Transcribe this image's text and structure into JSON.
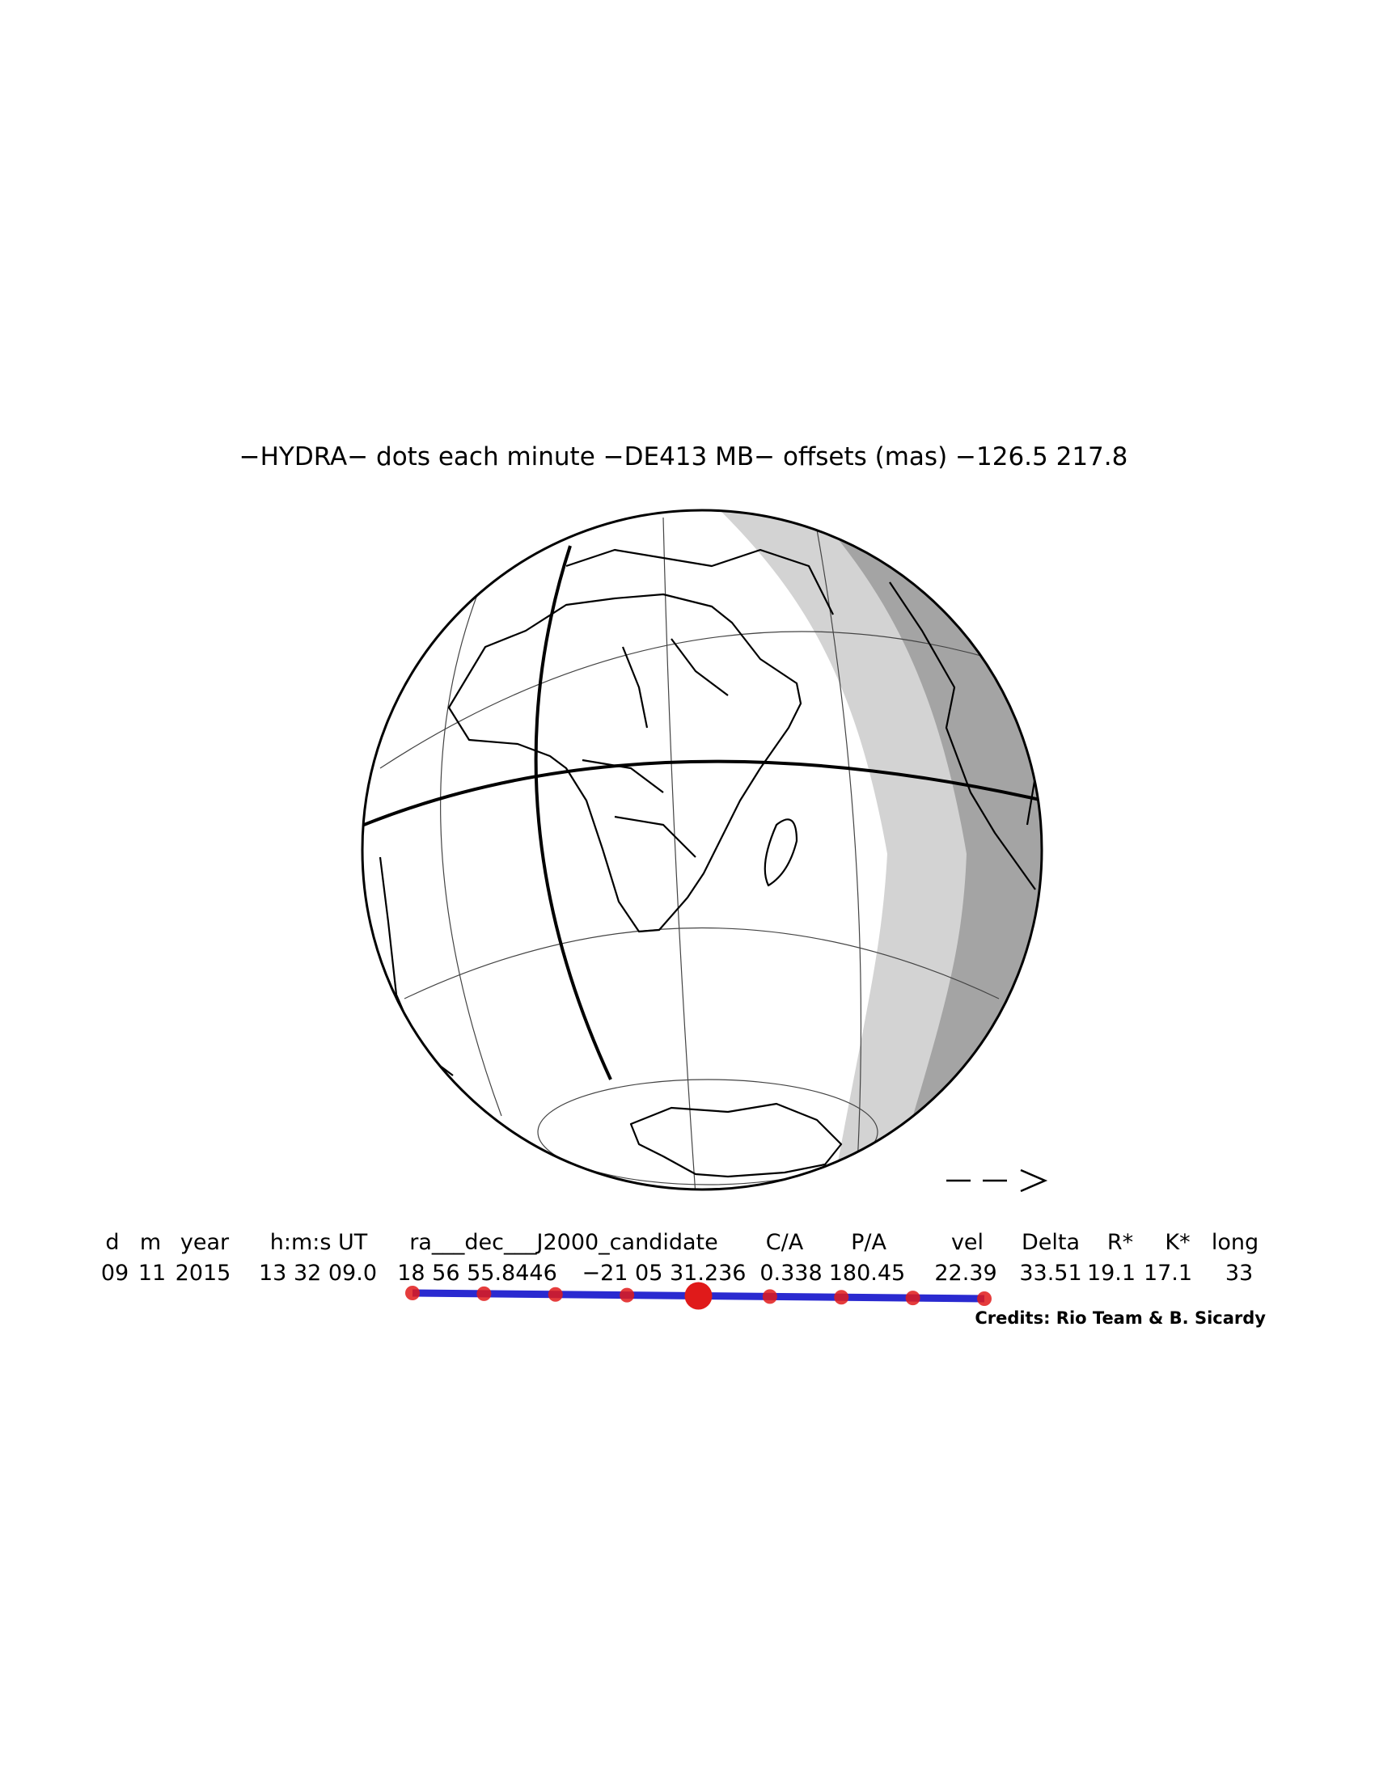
{
  "title": "−HYDRA− dots each minute −DE413 MB− offsets (mas) −126.5  217.8",
  "table": {
    "headers": [
      "d",
      "m",
      "year",
      "h:m:s UT",
      "ra___dec___J2000_candidate",
      "C/A",
      "P/A",
      "vel",
      "Delta",
      "R*",
      "K*",
      "long"
    ],
    "values": [
      "09",
      "11",
      "2015",
      "13 32 09.0",
      "18 56 55.8446",
      "−21 05 31.236",
      "0.338",
      "180.45",
      "22.39",
      "33.51",
      "19.1",
      "17.1",
      "33"
    ]
  },
  "credits": "Credits: Rio Team & B. Sicardy"
}
